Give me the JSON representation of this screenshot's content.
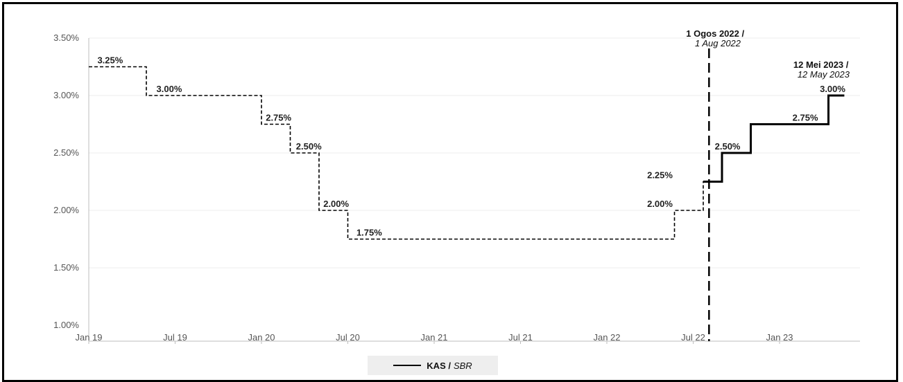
{
  "chart_data": {
    "type": "line",
    "y_ticks": [
      "3.50%",
      "3.00%",
      "2.50%",
      "2.00%",
      "1.50%",
      "1.00%"
    ],
    "y_tick_values": [
      3.5,
      3.0,
      2.5,
      2.0,
      1.5,
      1.0
    ],
    "ylim": [
      1.0,
      3.5
    ],
    "x_ticks": [
      "Jan 19",
      "Jul 19",
      "Jan 20",
      "Jul 20",
      "Jan 21",
      "Jul 21",
      "Jan 22",
      "Jul 22",
      "Jan 23"
    ],
    "x_tick_months": [
      0,
      6,
      12,
      18,
      24,
      30,
      36,
      42,
      48
    ],
    "grid": true,
    "series": [
      {
        "style": "dashed",
        "points": [
          {
            "month": 0,
            "value": 3.25
          },
          {
            "month": 4,
            "value": 3.25
          },
          {
            "month": 4,
            "value": 3.0
          },
          {
            "month": 12,
            "value": 3.0
          },
          {
            "month": 12,
            "value": 2.75
          },
          {
            "month": 14,
            "value": 2.75
          },
          {
            "month": 14,
            "value": 2.5
          },
          {
            "month": 16,
            "value": 2.5
          },
          {
            "month": 16,
            "value": 2.0
          },
          {
            "month": 18,
            "value": 2.0
          },
          {
            "month": 18,
            "value": 1.75
          },
          {
            "month": 40.7,
            "value": 1.75
          },
          {
            "month": 40.7,
            "value": 2.0
          },
          {
            "month": 42.7,
            "value": 2.0
          },
          {
            "month": 42.7,
            "value": 2.25
          },
          {
            "month": 43.1,
            "value": 2.25
          }
        ]
      },
      {
        "name": "KAS / SBR",
        "style": "solid",
        "points": [
          {
            "month": 42.7,
            "value": 2.25
          },
          {
            "month": 44.0,
            "value": 2.25
          },
          {
            "month": 44.0,
            "value": 2.5
          },
          {
            "month": 46.0,
            "value": 2.5
          },
          {
            "month": 46.0,
            "value": 2.75
          },
          {
            "month": 51.4,
            "value": 2.75
          },
          {
            "month": 51.4,
            "value": 3.0
          },
          {
            "month": 52.5,
            "value": 3.0
          }
        ]
      }
    ],
    "data_labels": [
      {
        "text": "3.25%",
        "month": 0.6,
        "value": 3.25
      },
      {
        "text": "3.00%",
        "month": 4.7,
        "value": 3.0
      },
      {
        "text": "2.75%",
        "month": 12.3,
        "value": 2.75
      },
      {
        "text": "2.50%",
        "month": 14.4,
        "value": 2.5
      },
      {
        "text": "2.00%",
        "month": 16.3,
        "value": 2.0
      },
      {
        "text": "1.75%",
        "month": 18.6,
        "value": 1.75
      },
      {
        "text": "2.00%",
        "month": 38.8,
        "value": 2.0
      },
      {
        "text": "2.25%",
        "month": 38.8,
        "value": 2.25
      },
      {
        "text": "2.50%",
        "month": 43.5,
        "value": 2.5
      },
      {
        "text": "2.75%",
        "month": 48.9,
        "value": 2.75
      },
      {
        "text": "3.00%",
        "month": 50.8,
        "value": 3.0
      }
    ],
    "reference_line": {
      "month": 43.1,
      "style": "dashed"
    },
    "annotations": [
      {
        "bold": "1 Ogos 2022 /",
        "italic": "1 Aug 2022"
      },
      {
        "bold": "12 Mei 2023 /",
        "italic": "12 May 2023"
      }
    ],
    "legend": {
      "position": "bottom",
      "label_bold": "KAS /",
      "label_italic": "SBR"
    }
  }
}
